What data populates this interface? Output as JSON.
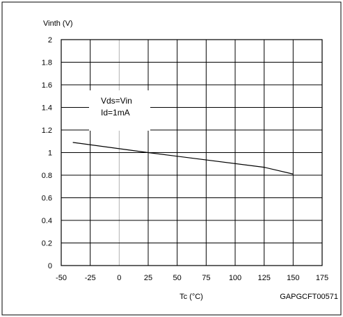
{
  "chart_data": {
    "type": "line",
    "title": "",
    "ylabel": "Vinth (V)",
    "xlabel": "Tc (°C)",
    "xlim": [
      -50,
      175
    ],
    "ylim": [
      0,
      2
    ],
    "x_ticks": [
      "-50",
      "-25",
      "0",
      "25",
      "50",
      "75",
      "100",
      "125",
      "150",
      "175"
    ],
    "y_ticks": [
      "0",
      "0.2",
      "0.4",
      "0.6",
      "0.8",
      "1",
      "1.2",
      "1.4",
      "1.6",
      "1.8",
      "2"
    ],
    "grid": true,
    "annotation": [
      "Vds=Vin",
      "Id=1mA"
    ],
    "series": [
      {
        "x": [
          -40,
          25,
          125,
          150
        ],
        "y": [
          1.09,
          1.0,
          0.87,
          0.81
        ]
      }
    ]
  },
  "figure_code": "GAPGCFT00571",
  "colors": {
    "line": "#000000",
    "grid": "#000000",
    "highlight_grid": "#b0b0b0",
    "border": "#000000"
  }
}
